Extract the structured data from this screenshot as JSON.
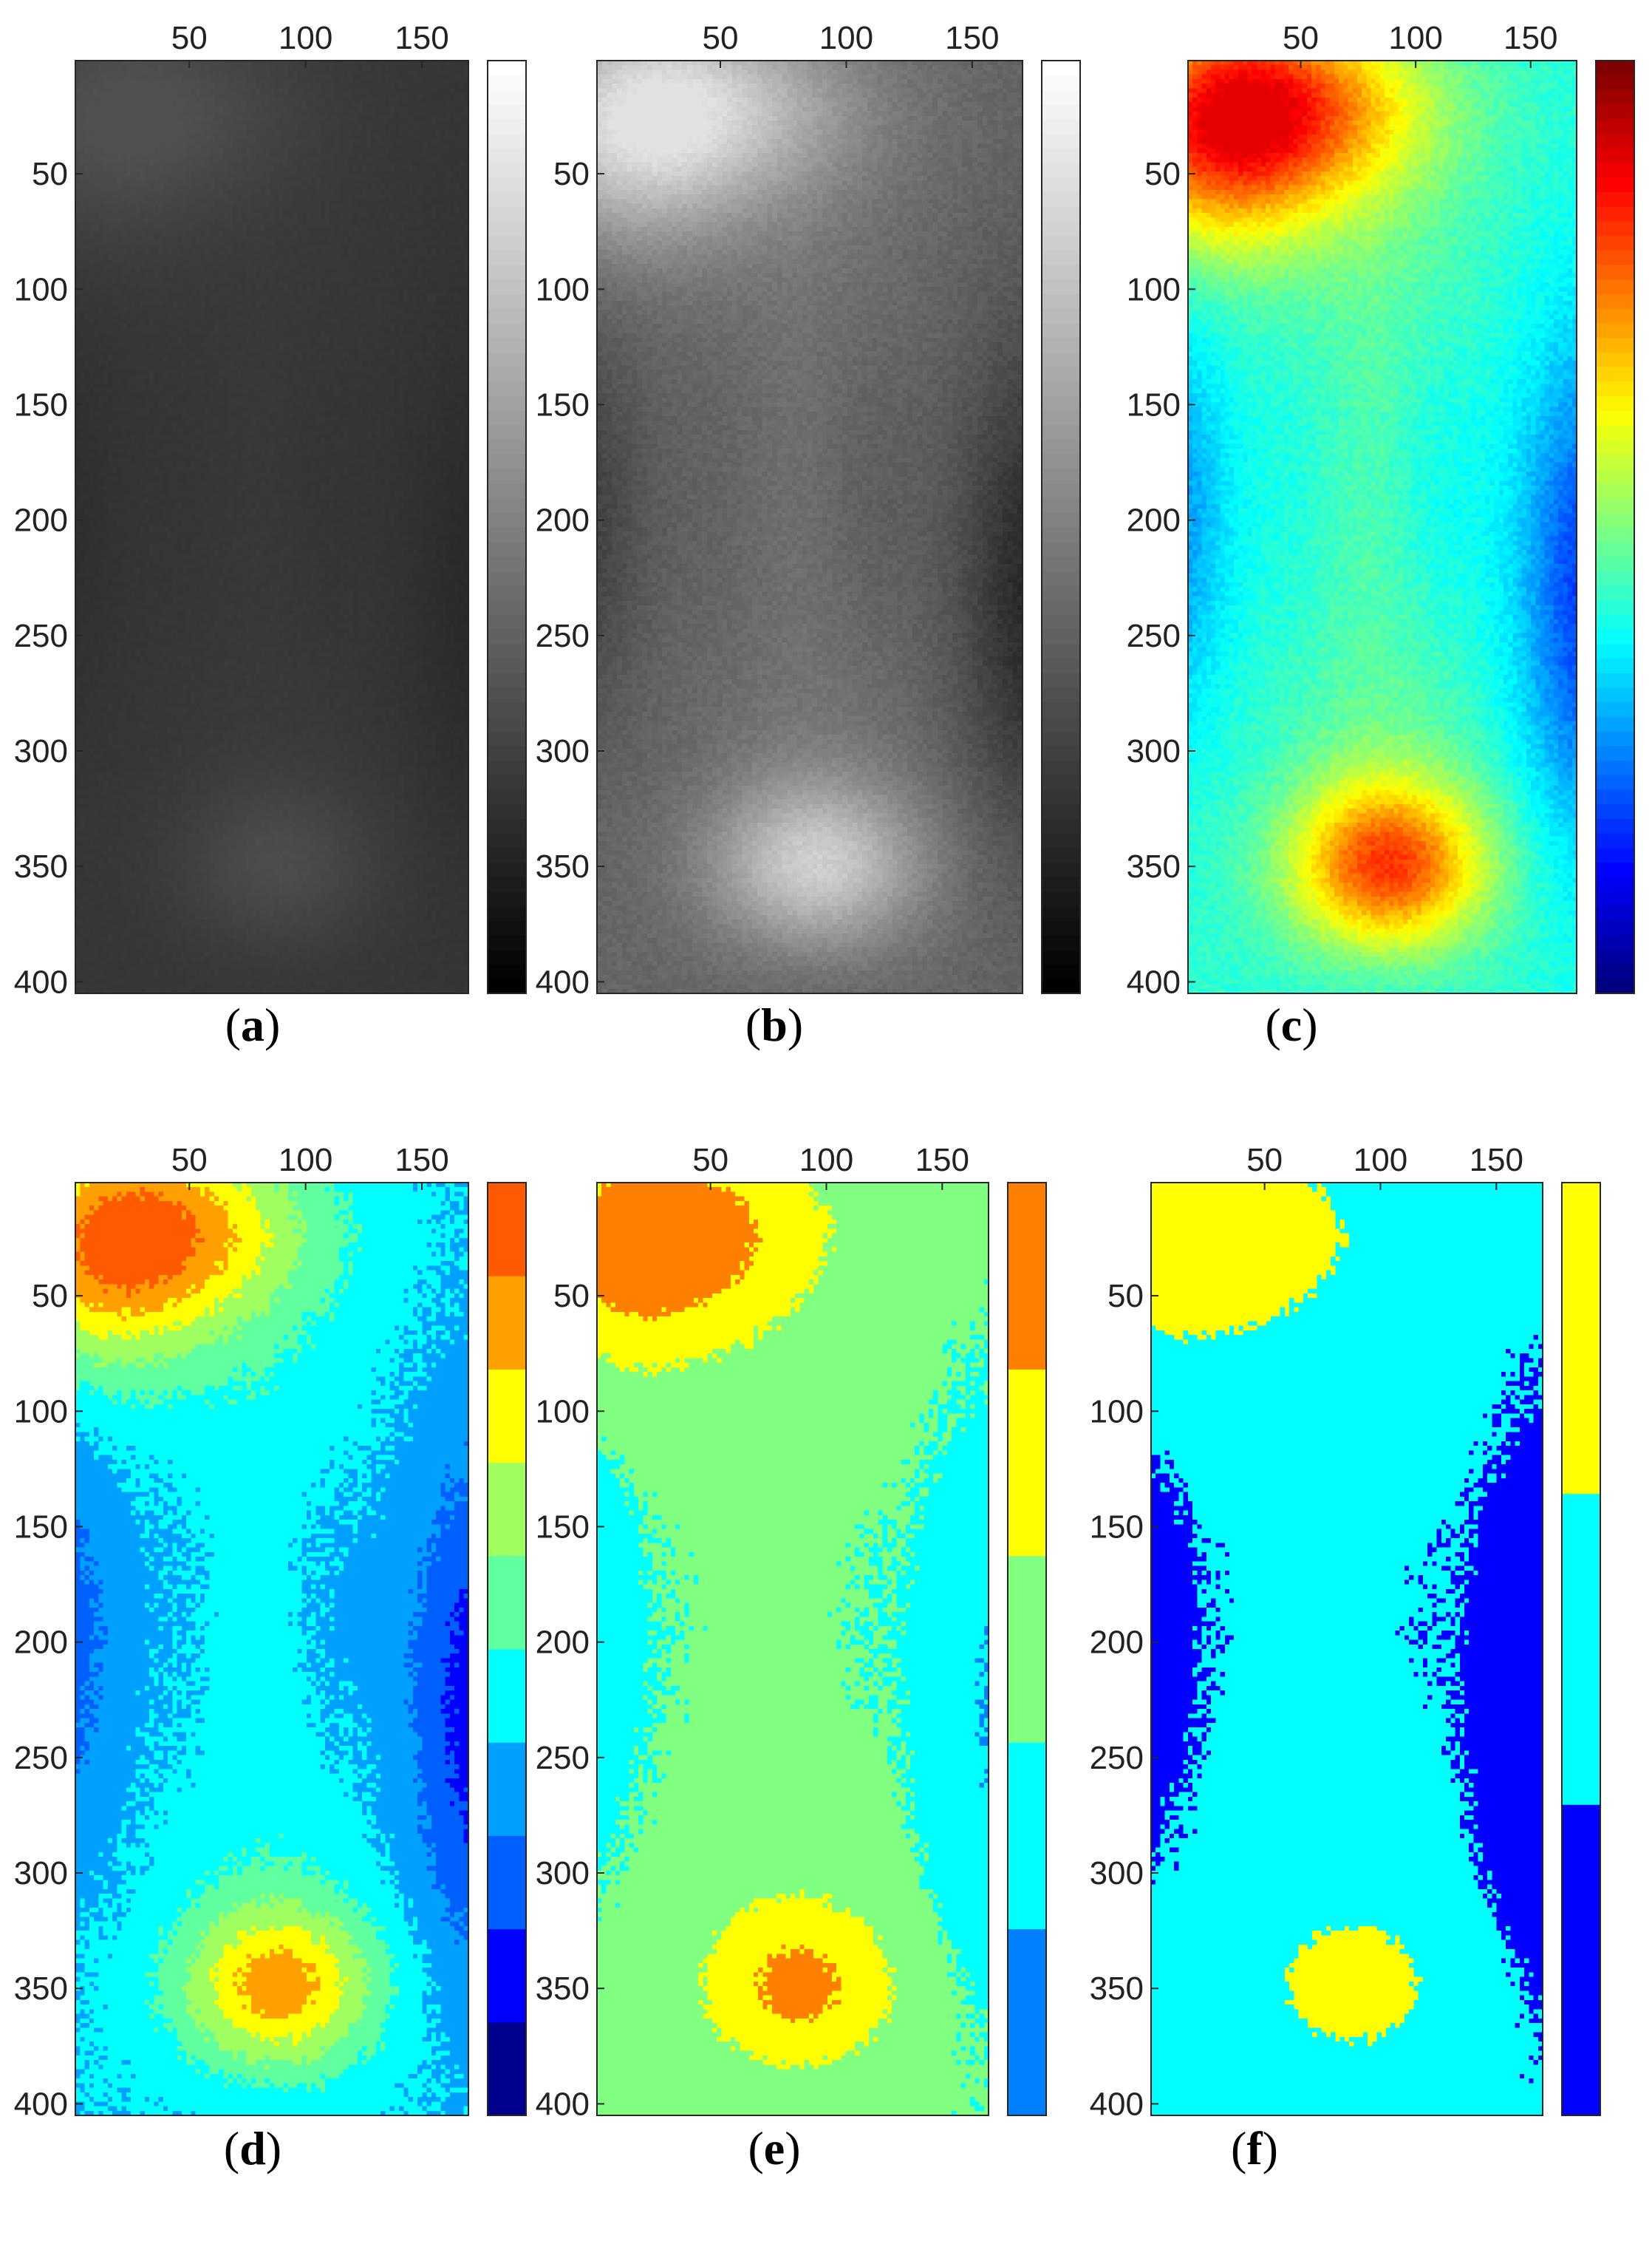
{
  "figure": {
    "captions": [
      "(a)",
      "(b)",
      "(c)",
      "(d)",
      "(e)",
      "(f)"
    ]
  },
  "chart_data": [
    {
      "type": "heatmap",
      "panel": "a",
      "caption": "(a)",
      "colormap": "gray",
      "intensity": "dark grayscale; slightly lighter regions near top-left and bottom-center",
      "xlim": [
        1,
        170
      ],
      "ylim": [
        1,
        405
      ],
      "x_ticks": [
        50,
        100,
        150
      ],
      "y_ticks": [
        50,
        100,
        150,
        200,
        250,
        300,
        350,
        400
      ],
      "axis_x_position": "top",
      "colorbar": "right, no tick labels",
      "grid": false
    },
    {
      "type": "heatmap",
      "panel": "b",
      "caption": "(b)",
      "colormap": "gray",
      "intensity": "bright top-left and bottom-center, dark right edge around rows 150-260",
      "xlim": [
        1,
        170
      ],
      "ylim": [
        1,
        405
      ],
      "x_ticks": [
        50,
        100,
        150
      ],
      "y_ticks": [
        50,
        100,
        150,
        200,
        250,
        300,
        350,
        400
      ],
      "axis_x_position": "top",
      "colorbar": "right, no tick labels",
      "grid": false
    },
    {
      "type": "heatmap",
      "panel": "c",
      "caption": "(c)",
      "colormap": "jet",
      "intensity": "red-orange blob top-left (rows 1-90), orange-red blob centered near x 85 y 350, blue along right edge rows 100-330",
      "xlim": [
        1,
        170
      ],
      "ylim": [
        1,
        405
      ],
      "x_ticks": [
        50,
        100,
        150
      ],
      "y_ticks": [
        50,
        100,
        150,
        200,
        250,
        300,
        350,
        400
      ],
      "axis_x_position": "top",
      "colorbar": "right, no tick labels",
      "grid": false
    },
    {
      "type": "heatmap",
      "panel": "d",
      "caption": "(d)",
      "colormap": "jet discrete, 10 levels",
      "colorbar_levels": [
        "#00008f",
        "#0000ff",
        "#0060ff",
        "#00a0ff",
        "#00ffff",
        "#60ffa0",
        "#a0ff60",
        "#ffff00",
        "#ff9f00",
        "#ff5a00"
      ],
      "xlim": [
        1,
        170
      ],
      "ylim": [
        1,
        405
      ],
      "x_ticks": [
        50,
        100,
        150
      ],
      "y_ticks": [
        50,
        100,
        150,
        200,
        250,
        300,
        350,
        400
      ],
      "axis_x_position": "top",
      "grid": false
    },
    {
      "type": "heatmap",
      "panel": "e",
      "caption": "(e)",
      "colormap": "jet discrete, 5 levels",
      "colorbar_levels": [
        "#0080ff",
        "#00ffff",
        "#80ff80",
        "#ffff00",
        "#ff8000"
      ],
      "xlim": [
        1,
        170
      ],
      "ylim": [
        1,
        405
      ],
      "x_ticks": [
        50,
        100,
        150
      ],
      "y_ticks": [
        50,
        100,
        150,
        200,
        250,
        300,
        350,
        400
      ],
      "axis_x_position": "top",
      "grid": false
    },
    {
      "type": "heatmap",
      "panel": "f",
      "caption": "(f)",
      "colormap": "jet discrete, 3 levels",
      "colorbar_levels": [
        "#0000ff",
        "#00ffff",
        "#ffff00"
      ],
      "xlim": [
        1,
        170
      ],
      "ylim": [
        1,
        405
      ],
      "x_ticks": [
        50,
        100,
        150
      ],
      "y_ticks": [
        50,
        100,
        150,
        200,
        250,
        300,
        350,
        400
      ],
      "axis_x_position": "top",
      "grid": false
    }
  ]
}
